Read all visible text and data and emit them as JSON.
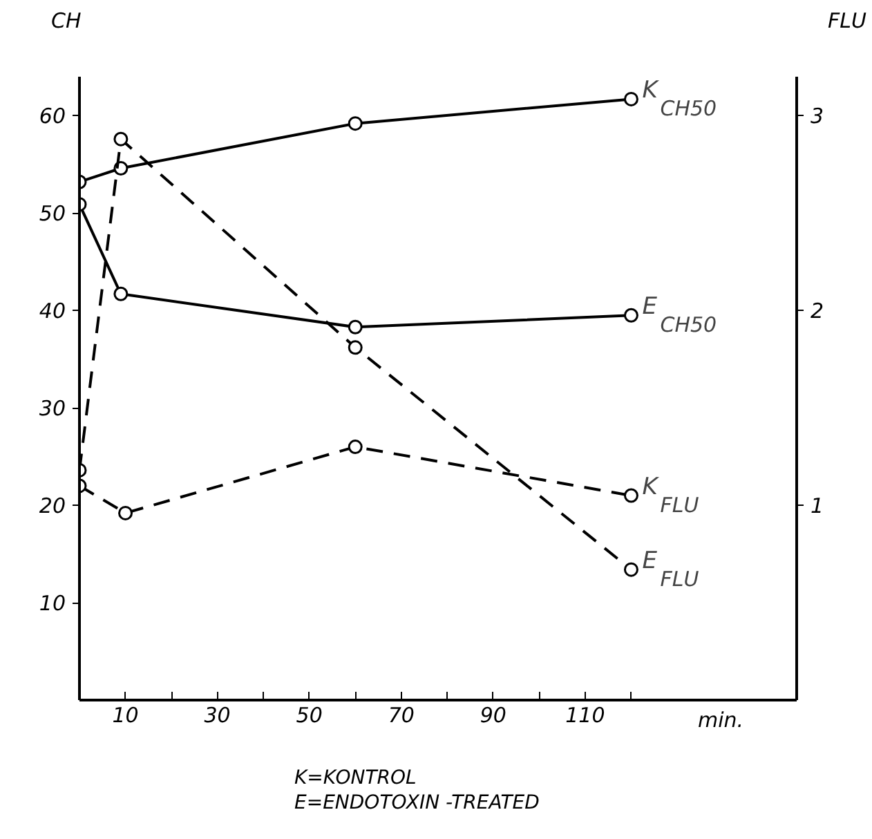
{
  "chart_data": {
    "type": "line",
    "xlabel": "min.",
    "ylabel": "CH",
    "y2label": "FLU",
    "annotations": [
      "K=KONTROL",
      "E=ENDOTOXIN -TREATED"
    ],
    "xlim": [
      0,
      156
    ],
    "ylim": [
      0,
      64
    ],
    "y2lim": [
      0,
      3.2
    ],
    "xticks": [
      {
        "value": 10,
        "label": "10"
      },
      {
        "value": 20,
        "label": null
      },
      {
        "value": 30,
        "label": "30"
      },
      {
        "value": 40,
        "label": null
      },
      {
        "value": 50,
        "label": "50"
      },
      {
        "value": 60,
        "label": null
      },
      {
        "value": 70,
        "label": "70"
      },
      {
        "value": 80,
        "label": null
      },
      {
        "value": 90,
        "label": "90"
      },
      {
        "value": 100,
        "label": null
      },
      {
        "value": 110,
        "label": "110"
      },
      {
        "value": 120,
        "label": null
      }
    ],
    "yticks": [
      10,
      20,
      30,
      40,
      50,
      60
    ],
    "y2ticks": [
      1,
      2,
      3
    ],
    "grid": false,
    "marker": "circle",
    "series": [
      {
        "name": "K$_{CH50}$",
        "color": "#000000",
        "line_style": "solid",
        "x": [
          0,
          9,
          60,
          120
        ],
        "values": [
          53.2,
          54.6,
          59.2,
          61.7
        ]
      },
      {
        "name": "E$_{CH50}$",
        "color": "#000000",
        "line_style": "solid",
        "x": [
          0,
          9,
          60,
          120
        ],
        "values": [
          50.9,
          41.7,
          38.3,
          39.5
        ]
      },
      {
        "name": "K$_{FLU}$",
        "color": "#000000",
        "line_style": "dashed",
        "axis": "y2",
        "x": [
          0,
          10,
          60,
          120
        ],
        "values": [
          1.1,
          0.96,
          1.3,
          1.05
        ]
      },
      {
        "name": "E$_{FLU}$",
        "color": "#000000",
        "line_style": "dashed",
        "axis": "y2",
        "x": [
          0,
          9,
          60,
          120
        ],
        "values": [
          1.18,
          2.88,
          1.81,
          0.67
        ]
      }
    ]
  }
}
